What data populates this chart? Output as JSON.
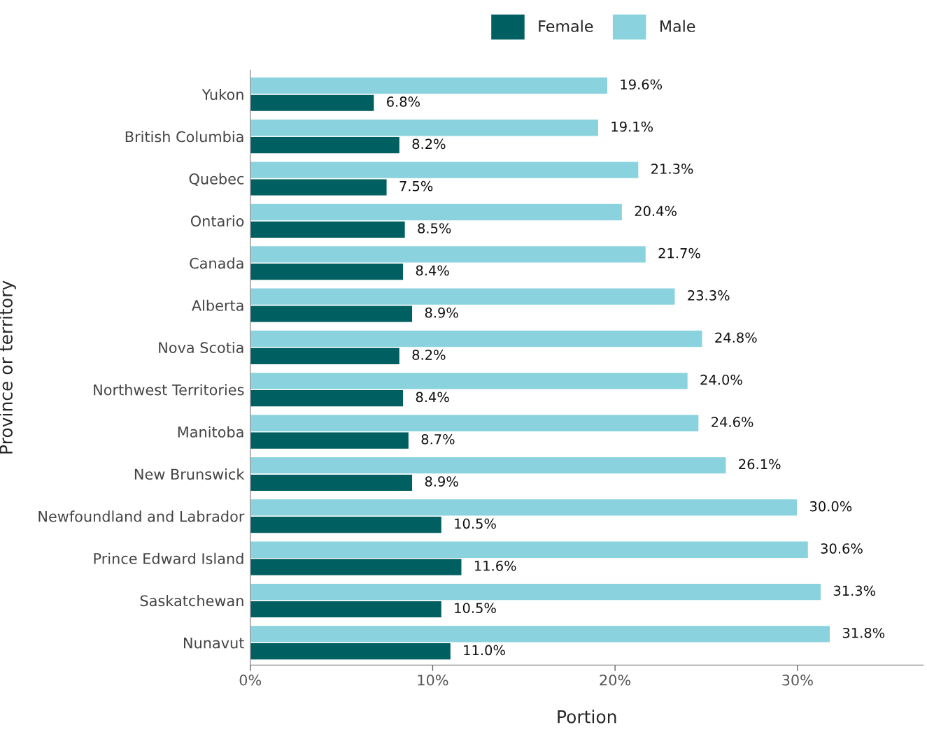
{
  "chart_data": {
    "type": "bar",
    "orientation": "horizontal",
    "xlabel": "Portion",
    "ylabel": "Province or territory",
    "categories": [
      "Yukon",
      "British Columbia",
      "Quebec",
      "Ontario",
      "Canada",
      "Alberta",
      "Nova Scotia",
      "Northwest Territories",
      "Manitoba",
      "New Brunswick",
      "Newfoundland and Labrador",
      "Prince Edward Island",
      "Saskatchewan",
      "Nunavut"
    ],
    "series": [
      {
        "name": "Female",
        "color": "#005f60",
        "values": [
          6.8,
          8.2,
          7.5,
          8.5,
          8.4,
          8.9,
          8.2,
          8.4,
          8.7,
          8.9,
          10.5,
          11.6,
          10.5,
          11.0
        ],
        "value_labels": [
          "6.8%",
          "8.2%",
          "7.5%",
          "8.5%",
          "8.4%",
          "8.9%",
          "8.2%",
          "8.4%",
          "8.7%",
          "8.9%",
          "10.5%",
          "11.6%",
          "10.5%",
          "11.0%"
        ]
      },
      {
        "name": "Male",
        "color": "#8ad3de",
        "values": [
          19.6,
          19.1,
          21.3,
          20.4,
          21.7,
          23.3,
          24.8,
          24.0,
          24.6,
          26.1,
          30.0,
          30.6,
          31.3,
          31.8
        ],
        "value_labels": [
          "19.6%",
          "19.1%",
          "21.3%",
          "20.4%",
          "21.7%",
          "23.3%",
          "24.8%",
          "24.0%",
          "24.6%",
          "26.1%",
          "30.0%",
          "30.6%",
          "31.3%",
          "31.8%"
        ]
      }
    ],
    "xlim": [
      0,
      36.9
    ],
    "xticks": [
      {
        "value": 0,
        "label": "0%"
      },
      {
        "value": 10,
        "label": "10%"
      },
      {
        "value": 20,
        "label": "20%"
      },
      {
        "value": 30,
        "label": "30%"
      }
    ],
    "grid": false,
    "legend": "top"
  }
}
